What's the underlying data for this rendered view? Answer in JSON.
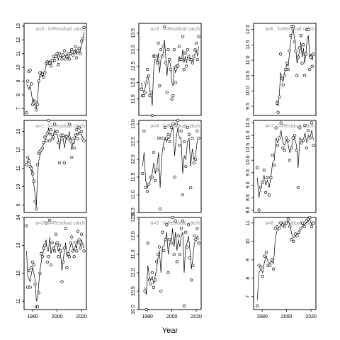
{
  "chart_data": {
    "type": "line",
    "xlabel": "Year",
    "x_ticks": [
      1980,
      2000,
      2020
    ],
    "panel_label_format": "a={a}  :  f=Residual catch",
    "years": [
      1975,
      1976,
      1977,
      1978,
      1979,
      1980,
      1981,
      1982,
      1983,
      1984,
      1985,
      1986,
      1987,
      1988,
      1989,
      1990,
      1991,
      1992,
      1993,
      1994,
      1995,
      1996,
      1997,
      1998,
      1999,
      2000,
      2001,
      2002,
      2003,
      2004,
      2005,
      2006,
      2007,
      2008,
      2009,
      2010,
      2011,
      2012,
      2013,
      2014,
      2015,
      2016,
      2017,
      2018,
      2019,
      2020,
      2021,
      2022
    ],
    "panels": [
      {
        "a": 0,
        "ylim": [
          6.5,
          13.2
        ],
        "yticks": [
          7,
          8,
          9,
          10,
          11,
          12,
          13
        ],
        "observed": [
          6.7,
          9.0,
          9.7,
          9.8,
          8.8,
          7.3,
          7.4,
          7.5,
          6.9,
          7.3,
          9.0,
          9.6,
          9.4,
          9.5,
          9.3,
          9.6,
          10.3,
          10.4,
          10.3,
          10.3,
          10.1,
          10.5,
          10.8,
          10.5,
          10.8,
          11.0,
          10.2,
          11.0,
          10.9,
          10.6,
          10.9,
          11.2,
          10.6,
          10.8,
          11.0,
          10.6,
          11.0,
          11.3,
          10.9,
          11.1,
          11.5,
          10.7,
          11.2,
          11.4,
          11.0,
          11.9,
          12.1,
          12.9
        ],
        "fitted": [
          8.8,
          8.6,
          8.4,
          8.7,
          8.1,
          7.5,
          7.7,
          7.2,
          7.0,
          7.6,
          8.9,
          9.5,
          9.7,
          9.6,
          9.5,
          9.7,
          10.1,
          10.4,
          10.2,
          10.5,
          10.2,
          10.6,
          10.4,
          10.7,
          10.9,
          11.1,
          10.5,
          10.9,
          10.8,
          10.7,
          11.0,
          10.9,
          10.8,
          11.0,
          10.6,
          10.8,
          11.2,
          11.0,
          10.9,
          11.2,
          11.3,
          10.9,
          11.3,
          11.0,
          11.2,
          11.6,
          11.9,
          12.6
        ]
      },
      {
        "a": 1,
        "ylim": [
          8.6,
          13.6
        ],
        "yticks": [
          9,
          10,
          11,
          12,
          13
        ],
        "observed": [
          11.2,
          11.6,
          11.4,
          11.1,
          11.0,
          10.7,
          10.3,
          9.2,
          8.8,
          11.2,
          11.8,
          11.9,
          12.0,
          12.1,
          12.4,
          12.7,
          12.5,
          12.9,
          13.6,
          12.5,
          13.1,
          12.6,
          12.7,
          13.4,
          12.9,
          13.0,
          12.4,
          11.3,
          12.8,
          12.6,
          12.8,
          11.3,
          12.7,
          12.7,
          12.6,
          13.4,
          12.5,
          11.6,
          12.6,
          12.1,
          12.8,
          13.1,
          12.6,
          13.2,
          12.9,
          13.0,
          12.6,
          12.5
        ],
        "fitted": [
          11.4,
          11.3,
          11.5,
          11.2,
          10.8,
          10.9,
          10.1,
          9.6,
          8.9,
          10.7,
          11.4,
          11.7,
          12.0,
          12.2,
          12.3,
          12.5,
          12.7,
          12.8,
          13.2,
          12.8,
          12.9,
          12.7,
          12.8,
          13.1,
          12.9,
          12.8,
          12.6,
          12.0,
          12.6,
          12.7,
          12.6,
          12.1,
          12.5,
          12.8,
          12.6,
          13.0,
          12.6,
          12.0,
          12.4,
          12.3,
          12.7,
          12.9,
          12.8,
          13.0,
          12.9,
          12.8,
          12.7,
          12.6
        ],
        "note": ""
      },
      {
        "a": 2,
        "ylim": [
          10.7,
          14.0
        ],
        "yticks": [
          11.0,
          12.0,
          13.0,
          14.0
        ],
        "observed": [
          13.7,
          11.5,
          12.1,
          11.5,
          12.2,
          12.4,
          12.3,
          11.6,
          10.8,
          10.8,
          11.3,
          12.0,
          12.7,
          12.6,
          12.9,
          13.0,
          13.8,
          12.4,
          12.6,
          13.9,
          12.3,
          13.1,
          12.9,
          12.8,
          13.4,
          13.1,
          12.6,
          13.0,
          12.8,
          11.7,
          12.4,
          12.9,
          13.6,
          12.2,
          12.7,
          12.6,
          13.1,
          13.3,
          12.8,
          12.6,
          13.1,
          12.8,
          13.5,
          13.2,
          12.9,
          13.4,
          13.0,
          12.8
        ],
        "fitted": [
          12.8,
          11.9,
          11.8,
          11.7,
          12.0,
          12.2,
          12.0,
          11.8,
          11.0,
          11.1,
          11.6,
          12.1,
          12.4,
          12.7,
          12.8,
          13.0,
          13.2,
          12.8,
          12.8,
          13.3,
          12.7,
          12.9,
          12.9,
          12.9,
          13.1,
          13.0,
          12.8,
          12.9,
          12.6,
          12.1,
          12.5,
          12.8,
          13.1,
          12.6,
          12.7,
          12.8,
          13.0,
          13.1,
          12.9,
          12.8,
          13.0,
          12.9,
          13.2,
          13.1,
          13.0,
          13.2,
          13.0,
          12.9
        ]
      },
      {
        "a": 3,
        "ylim": [
          11.0,
          13.8
        ],
        "yticks": [
          11.5,
          12.0,
          12.5,
          13.0,
          13.5
        ],
        "observed": [
          11.8,
          11.6,
          11.6,
          11.7,
          12.0,
          12.4,
          12.2,
          11.6,
          11.7,
          11.0,
          12.8,
          12.8,
          12.8,
          12.6,
          13.2,
          11.9,
          13.0,
          12.8,
          13.1,
          13.7,
          12.6,
          11.7,
          13.0,
          12.7,
          12.4,
          11.5,
          11.6,
          13.0,
          12.0,
          12.5,
          12.5,
          13.1,
          12.7,
          12.7,
          13.4,
          12.4,
          12.9,
          12.5,
          13.0,
          12.8,
          12.7,
          12.7,
          12.6,
          12.8,
          13.0,
          13.2,
          12.7,
          13.4
        ],
        "fitted": [
          12.0,
          11.8,
          11.7,
          11.8,
          12.0,
          12.2,
          12.1,
          11.8,
          11.6,
          11.3,
          12.3,
          12.7,
          12.7,
          12.6,
          12.9,
          12.3,
          12.7,
          12.8,
          12.9,
          13.3,
          12.8,
          12.2,
          12.6,
          12.7,
          12.5,
          12.0,
          11.9,
          12.5,
          12.3,
          12.4,
          12.5,
          12.8,
          12.7,
          12.7,
          13.0,
          12.6,
          12.8,
          12.6,
          12.8,
          12.8,
          12.7,
          12.7,
          12.6,
          12.7,
          12.9,
          13.0,
          12.8,
          13.1
        ]
      },
      {
        "a": 4,
        "ylim": [
          10.5,
          13.1
        ],
        "yticks": [
          10.5,
          11.0,
          11.5,
          12.0,
          12.5,
          13.0
        ],
        "observed": [
          11.6,
          12.8,
          11.2,
          11.1,
          11.3,
          11.5,
          11.5,
          12.2,
          11.4,
          11.7,
          12.6,
          10.6,
          12.6,
          12.3,
          12.9,
          12.6,
          12.7,
          12.5,
          12.9,
          13.0,
          11.5,
          13.0,
          13.1,
          12.4,
          12.8,
          11.0,
          12.5,
          11.8,
          12.9,
          12.7,
          11.2,
          12.6,
          11.9,
          12.0,
          12.8,
          12.6
        ],
        "fitted": [
          11.8,
          12.2,
          11.4,
          11.2,
          11.3,
          11.4,
          11.6,
          11.9,
          11.6,
          11.8,
          12.2,
          11.2,
          12.1,
          12.4,
          12.6,
          12.5,
          12.6,
          12.6,
          12.8,
          12.9,
          12.1,
          12.6,
          12.9,
          12.6,
          12.6,
          11.6,
          12.1,
          12.0,
          12.5,
          12.6,
          11.8,
          12.3,
          12.0,
          12.1,
          12.5,
          12.6
        ],
        "x_start": 1976
      },
      {
        "a": 5,
        "ylim": [
          10.0,
          12.5
        ],
        "yticks": [
          10.0,
          10.5,
          11.0,
          11.5,
          12.0,
          12.5
        ],
        "observed": [
          10.5,
          10.0,
          11.8,
          10.8,
          10.7,
          11.0,
          10.6,
          10.8,
          11.3,
          11.5,
          11.7,
          10.5,
          12.1,
          11.6,
          11.9,
          12.3,
          11.0,
          11.9,
          11.8,
          12.5,
          11.5,
          12.4,
          11.3,
          12.0,
          11.5,
          12.2,
          12.4,
          10.1,
          12.1,
          11.7,
          12.3,
          11.4,
          10.8,
          11.2,
          12.0,
          11.9,
          12.2,
          11.8
        ],
        "fitted": [
          10.6,
          10.4,
          11.2,
          10.9,
          10.8,
          10.9,
          10.7,
          10.9,
          11.1,
          11.4,
          11.6,
          11.0,
          11.7,
          11.7,
          11.9,
          12.1,
          11.5,
          11.8,
          11.8,
          12.2,
          11.7,
          12.1,
          11.6,
          11.9,
          11.7,
          12.0,
          12.1,
          11.0,
          11.7,
          11.8,
          12.0,
          11.6,
          11.1,
          11.4,
          11.8,
          11.9,
          12.0,
          11.9
        ],
        "x_start": 1978
      },
      {
        "a": 6,
        "ylim": [
          9.2,
          12.2
        ],
        "yticks": [
          9.5,
          10.0,
          10.5,
          11.0,
          11.5,
          12.0
        ],
        "observed": [
          9.6,
          9.3,
          9.8,
          11.2,
          10.4,
          10.2,
          10.5,
          10.7,
          10.9,
          10.7,
          11.3,
          11.8,
          12.1,
          12.1,
          11.6,
          11.3,
          10.5,
          11.1,
          11.4,
          11.8,
          10.9,
          11.5,
          10.5,
          11.2,
          12.0,
          12.0,
          10.7,
          11.1,
          10.8,
          11.2
        ],
        "fitted": [
          9.7,
          9.5,
          9.9,
          10.6,
          10.4,
          10.3,
          10.6,
          10.7,
          10.9,
          10.8,
          11.2,
          11.6,
          11.9,
          12.0,
          11.7,
          11.4,
          10.9,
          11.1,
          11.3,
          11.6,
          11.1,
          11.4,
          10.9,
          11.2,
          11.7,
          11.8,
          11.1,
          11.2,
          11.0,
          11.2
        ],
        "x_start": 1992
      },
      {
        "a": 7,
        "ylim": [
          7.9,
          11.6
        ],
        "yticks": [
          8.0,
          8.5,
          9.0,
          9.5,
          10.0,
          10.5,
          11.0,
          11.5
        ],
        "observed": [
          9.7,
          8.0,
          8.9,
          9.1,
          9.6,
          8.7,
          9.3,
          8.6,
          9.3,
          10.2,
          9.8,
          11.3,
          10.6,
          10.9,
          11.5,
          10.5,
          10.4,
          10.9,
          10.8,
          10.0,
          10.5,
          10.9,
          11.0,
          10.4,
          8.9,
          11.3,
          10.7,
          10.8,
          11.4,
          10.5,
          11.2,
          10.9,
          11.5,
          10.6
        ],
        "fitted": [
          9.3,
          8.5,
          8.9,
          9.1,
          9.4,
          9.0,
          9.2,
          8.9,
          9.3,
          9.9,
          10.0,
          10.9,
          10.7,
          10.9,
          11.2,
          10.7,
          10.6,
          10.8,
          10.7,
          10.3,
          10.5,
          10.8,
          10.9,
          10.6,
          9.7,
          10.9,
          10.8,
          10.8,
          11.1,
          10.7,
          11.0,
          10.9,
          11.2,
          10.8
        ],
        "x_start": 1976
      },
      {
        "a": 8,
        "ylim": [
          6.3,
          11.3
        ],
        "yticks": [
          7,
          8,
          9,
          10,
          11
        ],
        "observed": [
          6.5,
          8.7,
          8.6,
          8.1,
          9.2,
          9.4,
          8.7,
          8.7,
          9.0,
          8.5,
          10.7,
          10.8,
          10.7,
          11.0,
          10.9,
          10.8,
          11.0,
          11.2,
          10.8,
          10.1,
          10.0,
          10.4,
          10.3,
          10.5,
          10.7,
          11.0,
          10.8,
          11.1,
          11.2,
          11.3,
          10.8,
          11.0
        ],
        "fitted": [
          6.8,
          8.3,
          8.5,
          8.3,
          8.9,
          9.2,
          8.9,
          8.8,
          8.9,
          8.8,
          10.2,
          10.6,
          10.7,
          10.9,
          10.9,
          10.9,
          11.0,
          11.1,
          10.9,
          10.4,
          10.2,
          10.3,
          10.4,
          10.5,
          10.7,
          10.9,
          10.9,
          11.0,
          11.1,
          11.2,
          10.9,
          11.0
        ],
        "x_start": 1976
      }
    ]
  }
}
